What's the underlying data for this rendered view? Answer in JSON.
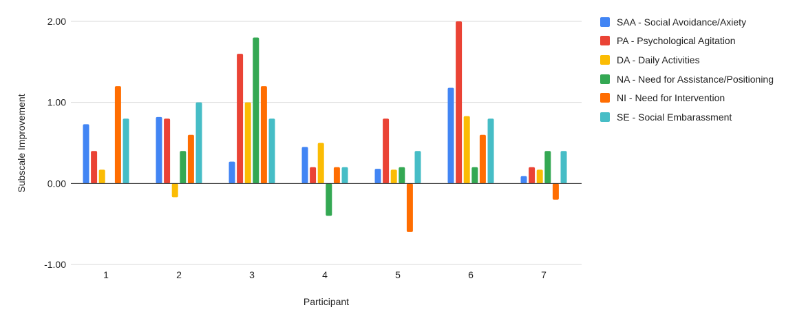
{
  "chart_data": {
    "type": "bar",
    "xlabel": "Participant",
    "ylabel": "Subscale Improvement",
    "ylim": [
      -1,
      2
    ],
    "yticks": [
      -1,
      0,
      1,
      2
    ],
    "ytick_labels": [
      "-1.00",
      "0.00",
      "1.00",
      "2.00"
    ],
    "grid": true,
    "legend_position": "right",
    "categories": [
      "1",
      "2",
      "3",
      "4",
      "5",
      "6",
      "7"
    ],
    "series": [
      {
        "name": "SAA - Social Avoidance/Axiety",
        "color": "#4285F4",
        "values": [
          0.73,
          0.82,
          0.27,
          0.45,
          0.18,
          1.18,
          0.09
        ]
      },
      {
        "name": "PA - Psychological Agitation",
        "color": "#EA4335",
        "values": [
          0.4,
          0.8,
          1.6,
          0.2,
          0.8,
          2.0,
          0.2
        ]
      },
      {
        "name": "DA - Daily Activities",
        "color": "#FBBC04",
        "values": [
          0.17,
          -0.17,
          1.0,
          0.5,
          0.17,
          0.83,
          0.17
        ]
      },
      {
        "name": "NA - Need for Assistance/Positioning",
        "color": "#34A853",
        "values": [
          0.0,
          0.4,
          1.8,
          -0.4,
          0.2,
          0.2,
          0.4
        ]
      },
      {
        "name": "NI - Need for Intervention",
        "color": "#FF6D01",
        "values": [
          1.2,
          0.6,
          1.2,
          0.2,
          -0.6,
          0.6,
          -0.2
        ]
      },
      {
        "name": "SE - Social Embarassment",
        "color": "#46BDC6",
        "values": [
          0.8,
          1.0,
          0.8,
          0.2,
          0.4,
          0.8,
          0.4
        ]
      }
    ]
  }
}
